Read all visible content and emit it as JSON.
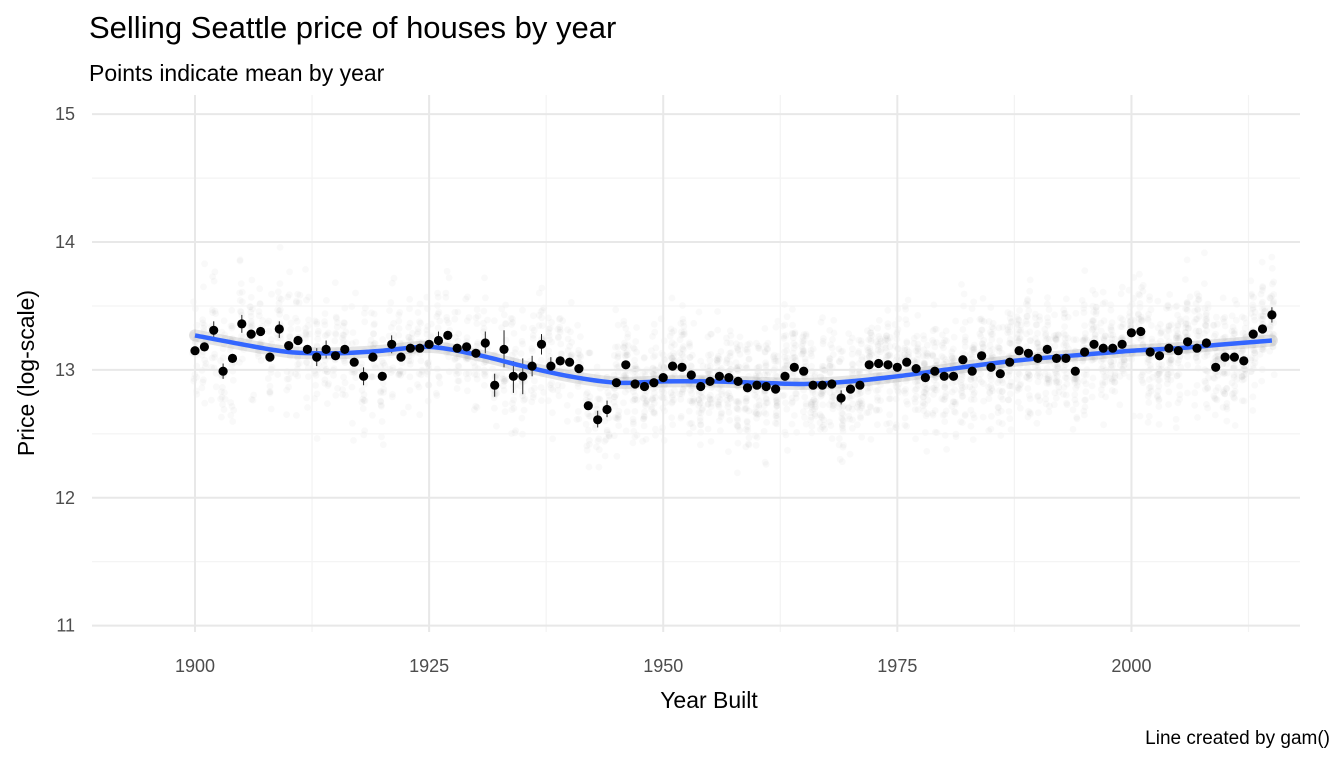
{
  "chart_data": {
    "type": "scatter",
    "title": "Selling Seattle price of houses by year",
    "subtitle": "Points indicate mean by year",
    "caption": "Line created by gam()",
    "xlabel": "Year Built",
    "ylabel": "Price (log-scale)",
    "xlim": [
      1889,
      2018
    ],
    "ylim": [
      10.95,
      15.15
    ],
    "x_ticks": [
      1900,
      1925,
      1950,
      1975,
      2000
    ],
    "y_ticks": [
      11,
      12,
      13,
      14,
      15
    ],
    "grid": true,
    "legend": "none",
    "colors": {
      "points": "#000000",
      "smooth_line": "#3366FF",
      "raw_points": "#888888",
      "grid_major": "#E8E8E8",
      "grid_minor": "#F3F3F3",
      "tick_text": "#4D4D4D"
    },
    "series": [
      {
        "name": "",
        "role": "yearly mean",
        "x": [
          1900,
          1901,
          1902,
          1903,
          1904,
          1905,
          1906,
          1907,
          1908,
          1909,
          1910,
          1911,
          1912,
          1913,
          1914,
          1915,
          1916,
          1917,
          1918,
          1919,
          1920,
          1921,
          1922,
          1923,
          1924,
          1925,
          1926,
          1927,
          1928,
          1929,
          1930,
          1931,
          1932,
          1933,
          1934,
          1935,
          1936,
          1937,
          1938,
          1939,
          1940,
          1941,
          1942,
          1943,
          1944,
          1945,
          1946,
          1947,
          1948,
          1949,
          1950,
          1951,
          1952,
          1953,
          1954,
          1955,
          1956,
          1957,
          1958,
          1959,
          1960,
          1961,
          1962,
          1963,
          1964,
          1965,
          1966,
          1967,
          1968,
          1969,
          1970,
          1971,
          1972,
          1973,
          1974,
          1975,
          1976,
          1977,
          1978,
          1979,
          1980,
          1981,
          1982,
          1983,
          1984,
          1985,
          1986,
          1987,
          1988,
          1989,
          1990,
          1991,
          1992,
          1993,
          1994,
          1995,
          1996,
          1997,
          1998,
          1999,
          2000,
          2001,
          2002,
          2003,
          2004,
          2005,
          2006,
          2007,
          2008,
          2009,
          2010,
          2011,
          2012,
          2013,
          2014,
          2015
        ],
        "y": [
          13.15,
          13.18,
          13.31,
          12.99,
          13.09,
          13.36,
          13.28,
          13.3,
          13.1,
          13.32,
          13.19,
          13.23,
          13.16,
          13.1,
          13.16,
          13.11,
          13.16,
          13.06,
          12.95,
          13.1,
          12.95,
          13.2,
          13.1,
          13.17,
          13.17,
          13.2,
          13.23,
          13.27,
          13.17,
          13.18,
          13.13,
          13.21,
          12.88,
          13.16,
          12.95,
          12.95,
          13.03,
          13.2,
          13.03,
          13.07,
          13.06,
          13.01,
          12.72,
          12.61,
          12.69,
          12.9,
          13.04,
          12.89,
          12.87,
          12.9,
          12.94,
          13.03,
          13.02,
          12.96,
          12.87,
          12.91,
          12.95,
          12.94,
          12.91,
          12.86,
          12.88,
          12.87,
          12.85,
          12.95,
          13.02,
          12.99,
          12.88,
          12.88,
          12.89,
          12.78,
          12.85,
          12.88,
          13.04,
          13.05,
          13.04,
          13.02,
          13.06,
          13.01,
          12.94,
          12.99,
          12.95,
          12.95,
          13.08,
          12.99,
          13.11,
          13.02,
          12.97,
          13.06,
          13.15,
          13.13,
          13.09,
          13.16,
          13.09,
          13.09,
          12.99,
          13.14,
          13.2,
          13.17,
          13.17,
          13.2,
          13.29,
          13.3,
          13.14,
          13.11,
          13.17,
          13.15,
          13.22,
          13.17,
          13.21,
          13.02,
          13.1,
          13.1,
          13.07,
          13.28,
          13.32,
          13.43
        ],
        "error_bars": [
          {
            "x": 1902,
            "low": 13.23,
            "high": 13.38
          },
          {
            "x": 1903,
            "low": 12.93,
            "high": 13.05
          },
          {
            "x": 1905,
            "low": 13.29,
            "high": 13.43
          },
          {
            "x": 1909,
            "low": 13.25,
            "high": 13.38
          },
          {
            "x": 1913,
            "low": 13.03,
            "high": 13.17
          },
          {
            "x": 1914,
            "low": 13.09,
            "high": 13.23
          },
          {
            "x": 1918,
            "low": 12.88,
            "high": 13.02
          },
          {
            "x": 1921,
            "low": 13.13,
            "high": 13.27
          },
          {
            "x": 1926,
            "low": 13.16,
            "high": 13.3
          },
          {
            "x": 1931,
            "low": 13.13,
            "high": 13.3
          },
          {
            "x": 1932,
            "low": 12.79,
            "high": 12.97
          },
          {
            "x": 1933,
            "low": 13.02,
            "high": 13.31
          },
          {
            "x": 1934,
            "low": 12.82,
            "high": 13.07
          },
          {
            "x": 1935,
            "low": 12.81,
            "high": 13.09
          },
          {
            "x": 1936,
            "low": 12.95,
            "high": 13.11
          },
          {
            "x": 1937,
            "low": 13.12,
            "high": 13.28
          },
          {
            "x": 1938,
            "low": 12.97,
            "high": 13.1
          },
          {
            "x": 1943,
            "low": 12.55,
            "high": 12.68
          },
          {
            "x": 1944,
            "low": 12.63,
            "high": 12.76
          },
          {
            "x": 1969,
            "low": 12.73,
            "high": 12.84
          },
          {
            "x": 2015,
            "low": 13.37,
            "high": 13.49
          }
        ]
      },
      {
        "name": "",
        "role": "gam smooth",
        "x": [
          1900,
          1905,
          1910,
          1915,
          1920,
          1925,
          1930,
          1935,
          1940,
          1945,
          1950,
          1955,
          1960,
          1965,
          1970,
          1975,
          1980,
          1985,
          1990,
          1995,
          2000,
          2005,
          2010,
          2015
        ],
        "y": [
          13.27,
          13.2,
          13.14,
          13.13,
          13.15,
          13.18,
          13.12,
          13.03,
          12.95,
          12.9,
          12.91,
          12.91,
          12.9,
          12.89,
          12.91,
          12.95,
          13.0,
          13.05,
          13.09,
          13.12,
          13.15,
          13.17,
          13.2,
          13.23
        ]
      }
    ]
  }
}
